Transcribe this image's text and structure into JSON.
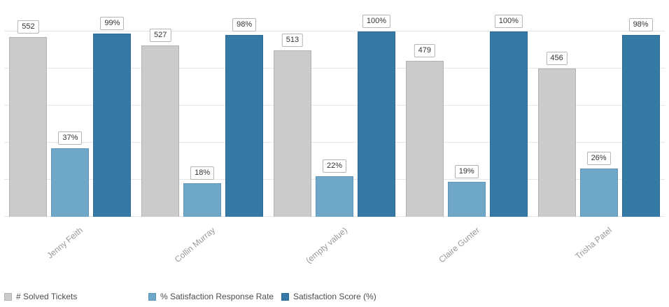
{
  "chart_data": {
    "type": "bar",
    "title": "",
    "xlabel": "",
    "ylabel": "",
    "categories": [
      "Jenny Feith",
      "Collin Murray",
      "(empty value)",
      "Claire Gunter",
      "Trisha Patel"
    ],
    "series": [
      {
        "name": "# Solved Tickets",
        "slug": "solved-tickets",
        "values": [
          552,
          527,
          513,
          479,
          456
        ],
        "data_labels": [
          "552",
          "527",
          "513",
          "479",
          "456"
        ],
        "color": "#cbcbcb",
        "border_color": "#b2b2b2",
        "axis": "tickets",
        "axis_max": 570
      },
      {
        "name": "% Satisfaction Response Rate",
        "slug": "satisfaction-response-rate",
        "values": [
          37,
          18,
          22,
          19,
          26
        ],
        "data_labels": [
          "37%",
          "18%",
          "22%",
          "19%",
          "26%"
        ],
        "color": "#6fa7c8",
        "border_color": "#5f96b7",
        "axis": "percent",
        "axis_max": 100
      },
      {
        "name": "Satisfaction Score (%)",
        "slug": "satisfaction-score",
        "values": [
          99,
          98,
          100,
          100,
          98
        ],
        "data_labels": [
          "99%",
          "98%",
          "100%",
          "100%",
          "98%"
        ],
        "color": "#3579a5",
        "border_color": "#2c6b95",
        "axis": "percent",
        "axis_max": 100
      }
    ],
    "axes": {
      "tickets": {
        "min": 0,
        "max": 570,
        "visible": false
      },
      "percent": {
        "min": 0,
        "max": 100,
        "visible": false
      }
    },
    "gridlines": {
      "count": 5,
      "color": "#e6e6e6"
    },
    "legend_position": "bottom-left"
  }
}
